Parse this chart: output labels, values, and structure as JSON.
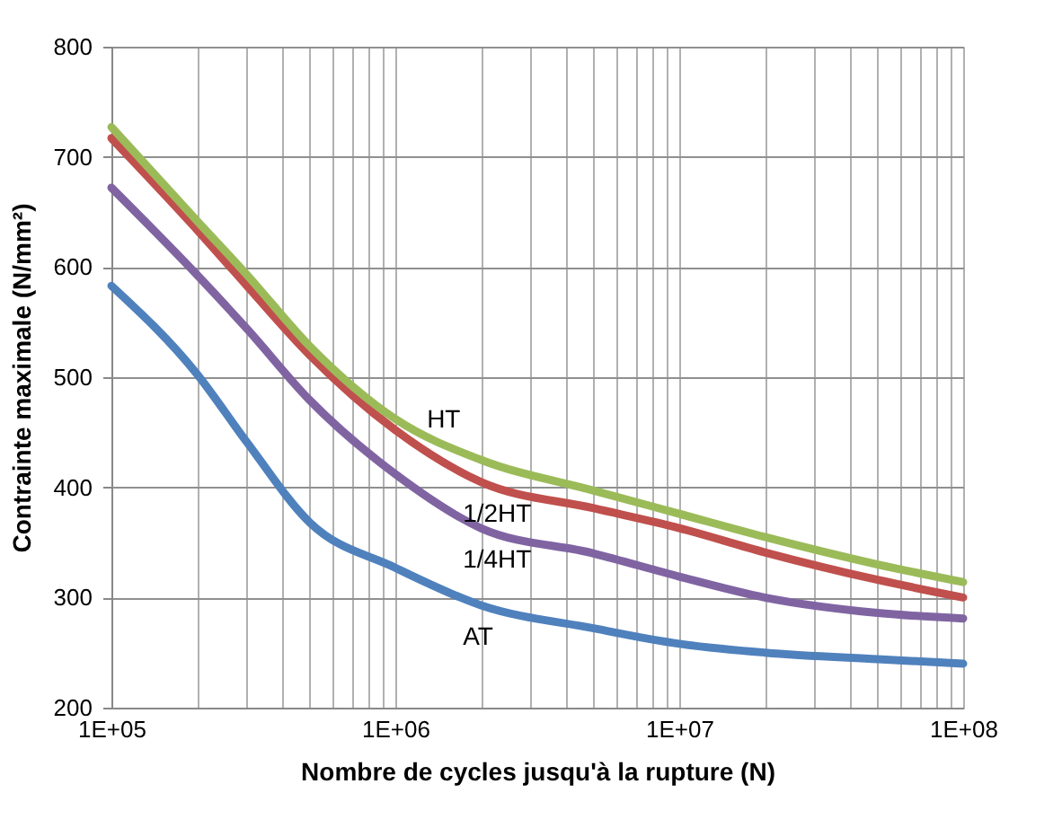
{
  "chart_data": {
    "type": "line",
    "xlabel": "Nombre de cycles jusqu'à la rupture (N)",
    "ylabel": "Contrainte maximale (N/mm²)",
    "x": [
      100000,
      200000,
      300000,
      500000,
      1000000,
      2000000,
      5000000,
      10000000,
      20000000,
      50000000,
      100000000
    ],
    "series": [
      {
        "name": "AT",
        "color": "#4f81bd",
        "values": [
          583,
          503,
          441,
          368,
          327,
          293,
          272,
          258,
          250,
          244,
          240
        ]
      },
      {
        "name": "1/4HT",
        "color": "#8064a2",
        "values": [
          672,
          593,
          544,
          479,
          412,
          363,
          340,
          319,
          300,
          286,
          281
        ]
      },
      {
        "name": "1/2HT",
        "color": "#c0504d",
        "values": [
          717,
          634,
          583,
          520,
          452,
          405,
          381,
          363,
          341,
          316,
          300
        ]
      },
      {
        "name": "HT",
        "color": "#9bbb59",
        "values": [
          727,
          642,
          593,
          528,
          462,
          425,
          397,
          376,
          355,
          330,
          314
        ]
      }
    ],
    "log": "x",
    "grid": true,
    "marker": "none",
    "line_style": "solid",
    "xlim": [
      100000,
      100000000
    ],
    "xticks": [
      {
        "value": 100000,
        "label": "1E+05"
      },
      {
        "value": 200000,
        "label": null
      },
      {
        "value": 300000,
        "label": null
      },
      {
        "value": 400000,
        "label": null
      },
      {
        "value": 500000,
        "label": null
      },
      {
        "value": 600000,
        "label": null
      },
      {
        "value": 700000,
        "label": null
      },
      {
        "value": 800000,
        "label": null
      },
      {
        "value": 900000,
        "label": null
      },
      {
        "value": 1000000,
        "label": "1E+06"
      },
      {
        "value": 2000000,
        "label": null
      },
      {
        "value": 3000000,
        "label": null
      },
      {
        "value": 4000000,
        "label": null
      },
      {
        "value": 5000000,
        "label": null
      },
      {
        "value": 6000000,
        "label": null
      },
      {
        "value": 7000000,
        "label": null
      },
      {
        "value": 8000000,
        "label": null
      },
      {
        "value": 9000000,
        "label": null
      },
      {
        "value": 10000000,
        "label": "1E+07"
      },
      {
        "value": 20000000,
        "label": null
      },
      {
        "value": 30000000,
        "label": null
      },
      {
        "value": 40000000,
        "label": null
      },
      {
        "value": 50000000,
        "label": null
      },
      {
        "value": 60000000,
        "label": null
      },
      {
        "value": 70000000,
        "label": null
      },
      {
        "value": 80000000,
        "label": null
      },
      {
        "value": 90000000,
        "label": null
      },
      {
        "value": 100000000,
        "label": "1E+08"
      }
    ],
    "ylim": [
      200,
      800
    ],
    "yticks": [
      200,
      300,
      400,
      500,
      600,
      700,
      800
    ]
  }
}
